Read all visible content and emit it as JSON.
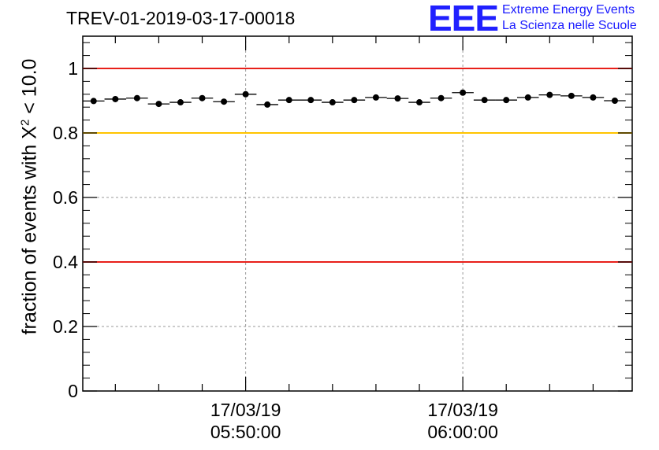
{
  "chart_data": {
    "type": "scatter",
    "title": "TREV-01-2019-03-17-00018",
    "ylabel_prefix": "fraction of events with X",
    "ylabel_sup": "2",
    "ylabel_suffix": " < 10.0",
    "xlabel": "",
    "ylim": [
      0,
      1.1
    ],
    "y_ticks": [
      "0",
      "0.2",
      "0.4",
      "0.6",
      "0.8",
      "1"
    ],
    "y_tick_values": [
      0,
      0.2,
      0.4,
      0.6,
      0.8,
      1.0
    ],
    "x_range_minutes": [
      0,
      25.3
    ],
    "x_ticks": [
      {
        "date": "17/03/19",
        "time": "05:50:00",
        "minute": 7.5
      },
      {
        "date": "17/03/19",
        "time": "06:00:00",
        "minute": 17.5
      }
    ],
    "bin_width_minutes": 1.0,
    "reference_lines": [
      {
        "value": 1.0,
        "color": "#e8201a"
      },
      {
        "value": 0.8,
        "color": "#ffc400"
      },
      {
        "value": 0.4,
        "color": "#e8201a"
      }
    ],
    "series": [
      {
        "name": "fraction",
        "x": [
          0.5,
          1.5,
          2.5,
          3.5,
          4.5,
          5.5,
          6.5,
          7.5,
          8.5,
          9.5,
          10.5,
          11.5,
          12.5,
          13.5,
          14.5,
          15.5,
          16.5,
          17.5,
          18.5,
          19.5,
          20.5,
          21.5,
          22.5,
          23.5,
          24.5
        ],
        "values": [
          0.899,
          0.905,
          0.908,
          0.89,
          0.895,
          0.908,
          0.897,
          0.92,
          0.888,
          0.902,
          0.902,
          0.895,
          0.902,
          0.91,
          0.907,
          0.895,
          0.908,
          0.925,
          0.902,
          0.902,
          0.91,
          0.918,
          0.915,
          0.91,
          0.9
        ]
      }
    ],
    "grid": true
  },
  "logo": {
    "letters": "EEE",
    "line1": "Extreme Energy Events",
    "line2": "La Scienza nelle Scuole",
    "color": "#2020ff"
  }
}
